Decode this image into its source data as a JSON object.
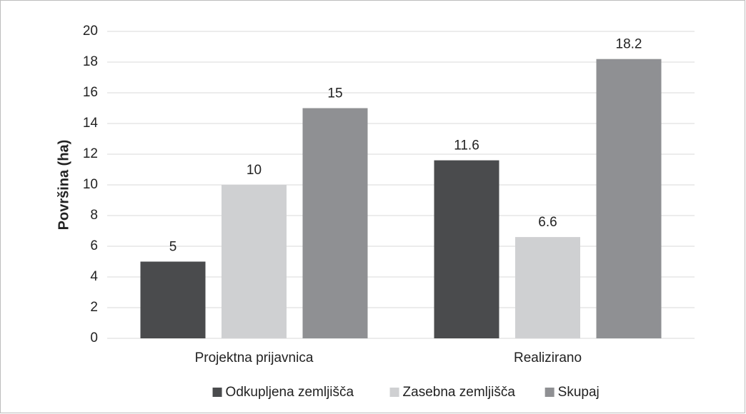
{
  "chart_data": {
    "type": "bar",
    "y_label": "Površina (ha)",
    "categories": [
      "Projektna prijavnica",
      "Realizirano"
    ],
    "series": [
      {
        "name": "Odkupljena zemljišča",
        "color": "#4a4b4d",
        "values": [
          5,
          11.6
        ]
      },
      {
        "name": "Zasebna zemljišča",
        "color": "#cfd0d2",
        "values": [
          10,
          6.6
        ]
      },
      {
        "name": "Skupaj",
        "color": "#8f9093",
        "values": [
          15,
          18.2
        ]
      }
    ],
    "ylim": [
      0,
      20
    ],
    "yticks": [
      0,
      2,
      4,
      6,
      8,
      10,
      12,
      14,
      16,
      18,
      20
    ],
    "grid": true,
    "legend": "bottom"
  }
}
